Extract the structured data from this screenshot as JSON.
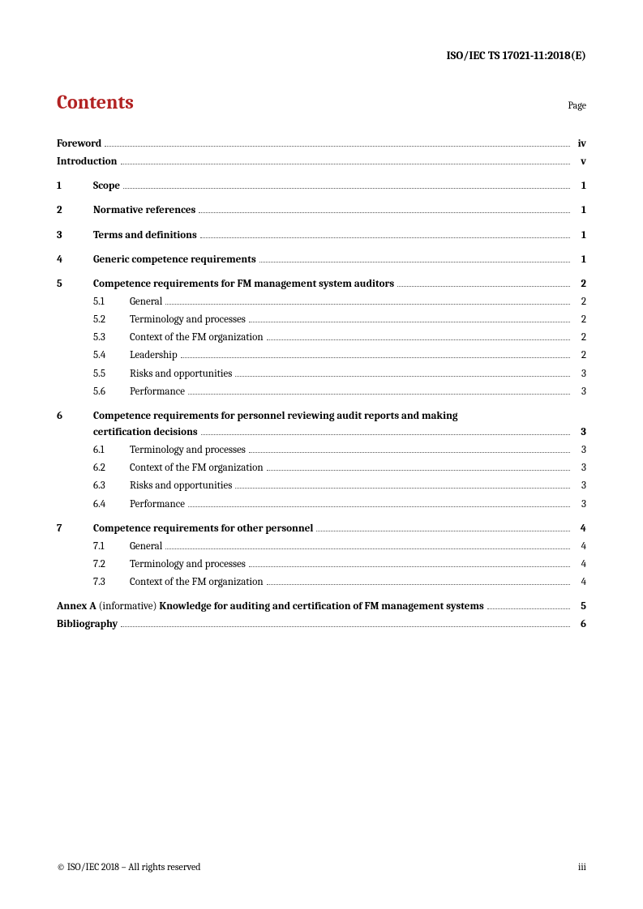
{
  "header": {
    "docId": "ISO/IEC TS 17021-11:2018(E)"
  },
  "title": {
    "heading": "Contents",
    "pageLabel": "Page"
  },
  "toc": {
    "foreword": {
      "title": "Foreword",
      "page": "iv"
    },
    "introduction": {
      "title": "Introduction",
      "page": "v"
    },
    "s1": {
      "num": "1",
      "title": "Scope",
      "page": "1"
    },
    "s2": {
      "num": "2",
      "title": "Normative references",
      "page": "1"
    },
    "s3": {
      "num": "3",
      "title": "Terms and definitions",
      "page": "1"
    },
    "s4": {
      "num": "4",
      "title": "Generic competence requirements",
      "page": "1"
    },
    "s5": {
      "num": "5",
      "title": "Competence requirements for FM management system auditors",
      "page": "2",
      "subs": {
        "s5_1": {
          "num": "5.1",
          "title": "General",
          "page": "2"
        },
        "s5_2": {
          "num": "5.2",
          "title": "Terminology and processes",
          "page": "2"
        },
        "s5_3": {
          "num": "5.3",
          "title": "Context of the FM organization",
          "page": "2"
        },
        "s5_4": {
          "num": "5.4",
          "title": "Leadership",
          "page": "2"
        },
        "s5_5": {
          "num": "5.5",
          "title": "Risks and opportunities",
          "page": "3"
        },
        "s5_6": {
          "num": "5.6",
          "title": "Performance",
          "page": "3"
        }
      }
    },
    "s6": {
      "num": "6",
      "titleLine1": "Competence requirements for personnel reviewing audit reports and making",
      "titleLine2": "certification decisions",
      "page": "3",
      "subs": {
        "s6_1": {
          "num": "6.1",
          "title": "Terminology and processes",
          "page": "3"
        },
        "s6_2": {
          "num": "6.2",
          "title": "Context of the FM organization",
          "page": "3"
        },
        "s6_3": {
          "num": "6.3",
          "title": "Risks and opportunities",
          "page": "3"
        },
        "s6_4": {
          "num": "6.4",
          "title": "Performance",
          "page": "3"
        }
      }
    },
    "s7": {
      "num": "7",
      "title": "Competence requirements for other personnel",
      "page": "4",
      "subs": {
        "s7_1": {
          "num": "7.1",
          "title": "General",
          "page": "4"
        },
        "s7_2": {
          "num": "7.2",
          "title": "Terminology and processes",
          "page": "4"
        },
        "s7_3": {
          "num": "7.3",
          "title": "Context of the FM organization",
          "page": "4"
        }
      }
    },
    "annexA": {
      "label": "Annex A",
      "note": " (informative) ",
      "title": "Knowledge for auditing and certification of FM management systems",
      "page": "5"
    },
    "bibliography": {
      "title": "Bibliography",
      "page": "6"
    }
  },
  "footer": {
    "copyright": "© ISO/IEC 2018 – All rights reserved",
    "pageNum": "iii"
  }
}
